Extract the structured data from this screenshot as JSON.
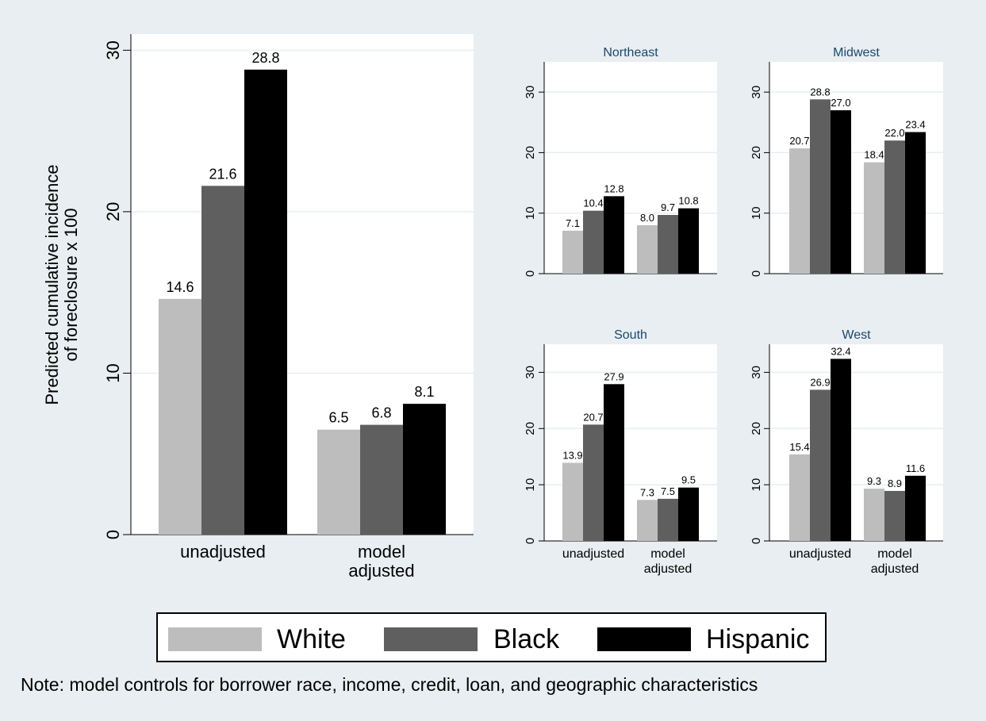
{
  "colors": {
    "white": "#bdbdbd",
    "black": "#5f5f5f",
    "hispanic": "#000000",
    "panel_bg": "#ffffff",
    "page_bg": "#e8eef1",
    "grid": "#e8eef1",
    "region_title": "#1a476f"
  },
  "chart_data": [
    {
      "type": "bar",
      "title": "",
      "ylabel": "Predicted cumulative incidence of foreclosure x 100",
      "ylabel_lines": [
        "Predicted cumulative incidence",
        "of foreclosure x 100"
      ],
      "categories": [
        [
          "unadjusted"
        ],
        [
          "model",
          "adjusted"
        ]
      ],
      "ylim": [
        0,
        31
      ],
      "yticks": [
        0,
        10,
        20,
        30
      ],
      "series": [
        {
          "name": "White",
          "values": [
            14.6,
            6.5
          ]
        },
        {
          "name": "Black",
          "values": [
            21.6,
            6.8
          ]
        },
        {
          "name": "Hispanic",
          "values": [
            28.8,
            8.1
          ]
        }
      ]
    },
    {
      "type": "bar",
      "title": "Northeast",
      "categories": [
        [
          "unadjusted"
        ],
        [
          "model",
          "adjusted"
        ]
      ],
      "ylim": [
        0,
        35
      ],
      "yticks": [
        0,
        10,
        20,
        30
      ],
      "series": [
        {
          "name": "White",
          "values": [
            7.1,
            8.0
          ]
        },
        {
          "name": "Black",
          "values": [
            10.4,
            9.7
          ]
        },
        {
          "name": "Hispanic",
          "values": [
            12.8,
            10.8
          ]
        }
      ]
    },
    {
      "type": "bar",
      "title": "Midwest",
      "categories": [
        [
          "unadjusted"
        ],
        [
          "model",
          "adjusted"
        ]
      ],
      "ylim": [
        0,
        35
      ],
      "yticks": [
        0,
        10,
        20,
        30
      ],
      "series": [
        {
          "name": "White",
          "values": [
            20.7,
            18.4
          ]
        },
        {
          "name": "Black",
          "values": [
            28.8,
            22.0
          ]
        },
        {
          "name": "Hispanic",
          "values": [
            27.0,
            23.4
          ]
        }
      ]
    },
    {
      "type": "bar",
      "title": "South",
      "categories": [
        [
          "unadjusted"
        ],
        [
          "model",
          "adjusted"
        ]
      ],
      "ylim": [
        0,
        35
      ],
      "yticks": [
        0,
        10,
        20,
        30
      ],
      "series": [
        {
          "name": "White",
          "values": [
            13.9,
            7.3
          ]
        },
        {
          "name": "Black",
          "values": [
            20.7,
            7.5
          ]
        },
        {
          "name": "Hispanic",
          "values": [
            27.9,
            9.5
          ]
        }
      ]
    },
    {
      "type": "bar",
      "title": "West",
      "categories": [
        [
          "unadjusted"
        ],
        [
          "model",
          "adjusted"
        ]
      ],
      "ylim": [
        0,
        35
      ],
      "yticks": [
        0,
        10,
        20,
        30
      ],
      "series": [
        {
          "name": "White",
          "values": [
            15.4,
            9.3
          ]
        },
        {
          "name": "Black",
          "values": [
            26.9,
            8.9
          ]
        },
        {
          "name": "Hispanic",
          "values": [
            32.4,
            11.6
          ]
        }
      ]
    }
  ],
  "legend": {
    "position": "bottom-center",
    "items": [
      {
        "label": "White",
        "color": "#bdbdbd"
      },
      {
        "label": "Black",
        "color": "#5f5f5f"
      },
      {
        "label": "Hispanic",
        "color": "#000000"
      }
    ]
  },
  "note": "Note: model controls for borrower race, income, credit, loan, and geographic characteristics"
}
